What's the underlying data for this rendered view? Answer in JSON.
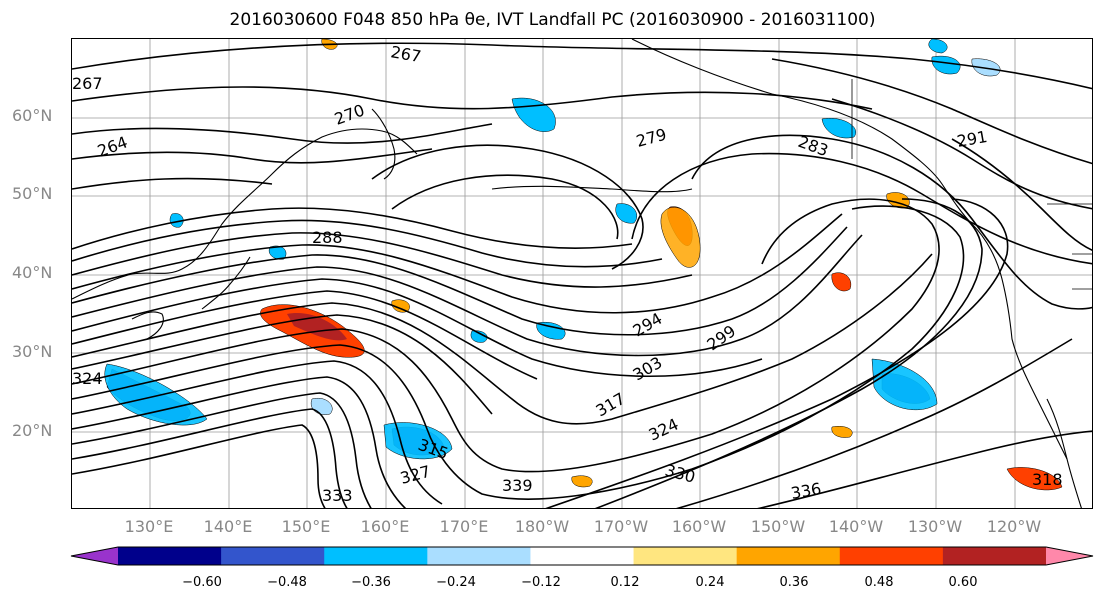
{
  "title": "2016030600 F048 850 hPa θe, IVT Landfall PC (2016030900 - 2016031100)",
  "map": {
    "lat_labels": [
      "60°N",
      "50°N",
      "40°N",
      "30°N",
      "20°N"
    ],
    "lon_labels": [
      "130°E",
      "140°E",
      "150°E",
      "160°E",
      "170°E",
      "180°W",
      "170°W",
      "160°W",
      "150°W",
      "140°W",
      "130°W",
      "120°W"
    ],
    "contour_labels": [
      "267",
      "264",
      "270",
      "279",
      "283",
      "288",
      "291",
      "294",
      "299",
      "303",
      "315",
      "317",
      "324",
      "327",
      "330",
      "333",
      "339",
      "336",
      "318"
    ],
    "contour_color": "#000000"
  },
  "colorbar": {
    "colors": [
      "#9933cc",
      "#00008b",
      "#3355cc",
      "#00bfff",
      "#aadeff",
      "#ffffff",
      "#ffe680",
      "#ffa500",
      "#ff4000",
      "#b22222",
      "#ff88aa"
    ],
    "tick_labels": [
      "−0.60",
      "−0.48",
      "−0.36",
      "−0.24",
      "−0.12",
      "0.12",
      "0.24",
      "0.36",
      "0.48",
      "0.60"
    ],
    "extend": "both"
  }
}
